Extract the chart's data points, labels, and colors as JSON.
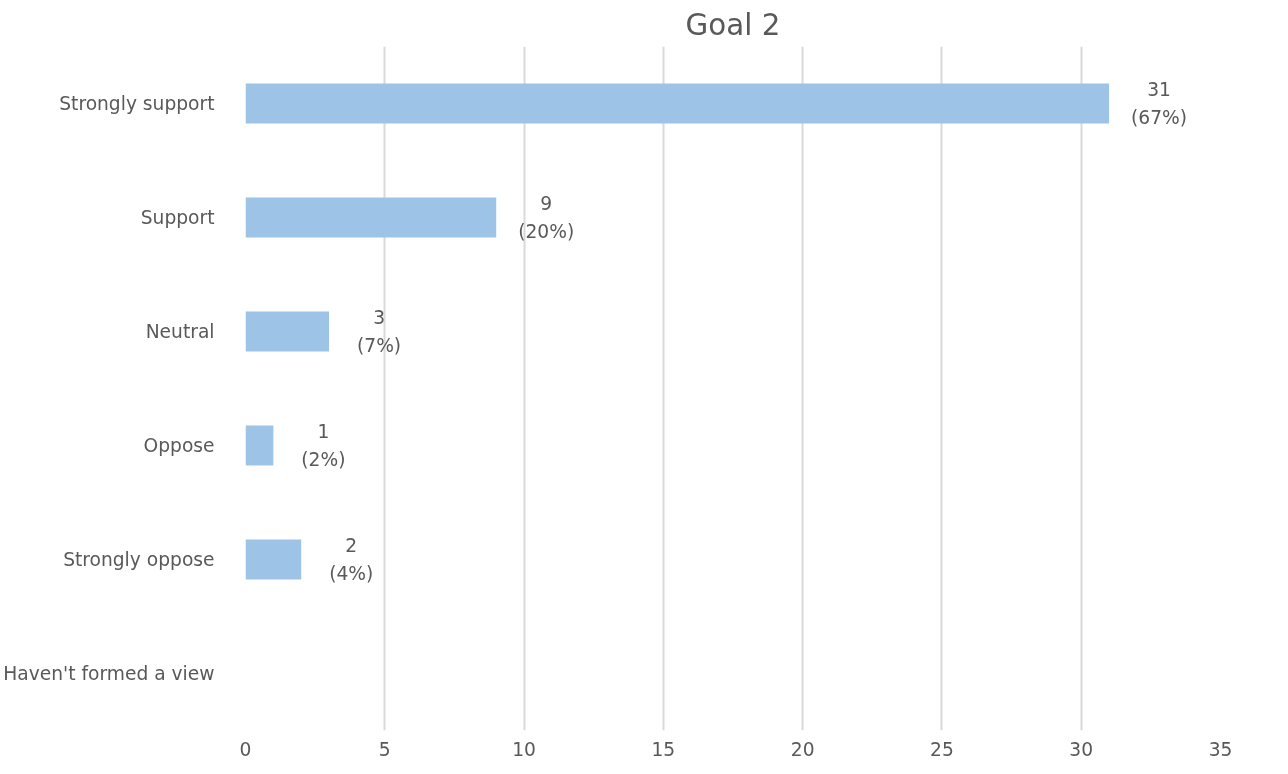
{
  "chart_data": {
    "type": "bar",
    "orientation": "horizontal",
    "title": "Goal 2",
    "categories": [
      "Strongly support",
      "Support",
      "Neutral",
      "Oppose",
      "Strongly oppose",
      "Haven't formed a view"
    ],
    "values": [
      31,
      9,
      3,
      1,
      2,
      null
    ],
    "value_labels": [
      "31\n(67%)",
      "9\n(20%)",
      "3\n(7%)",
      "1\n(2%)",
      "2\n(4%)",
      null
    ],
    "color": "#9dc3e6",
    "xlim": [
      0,
      35
    ],
    "xticks": [
      0,
      5,
      10,
      15,
      20,
      25,
      30,
      35
    ],
    "grid": "x"
  }
}
